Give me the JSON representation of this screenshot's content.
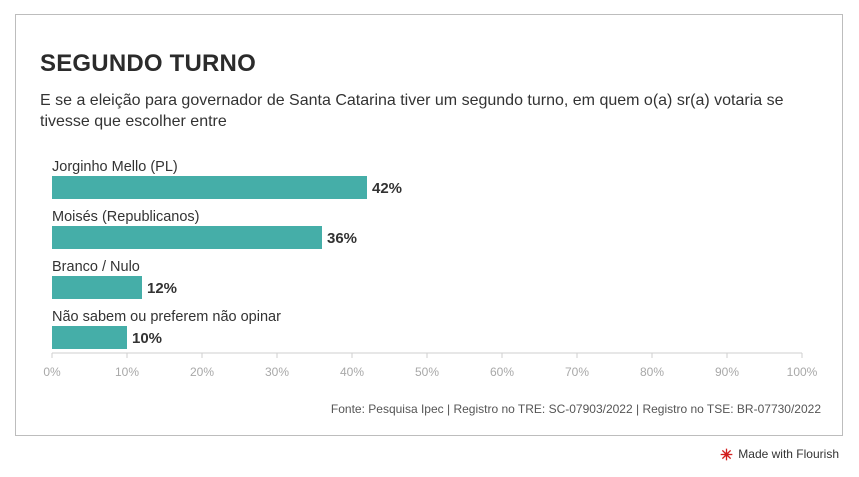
{
  "header": {
    "title": "SEGUNDO TURNO",
    "subtitle": "E se a eleição para governador de Santa Catarina tiver um segundo turno, em quem o(a) sr(a) votaria se tivesse que escolher entre"
  },
  "chart_data": {
    "type": "bar",
    "orientation": "horizontal",
    "title": "SEGUNDO TURNO",
    "categories": [
      "Jorginho Mello (PL)",
      "Moisés (Republicanos)",
      "Branco / Nulo",
      "Não sabem ou preferem não opinar"
    ],
    "values": [
      42,
      36,
      12,
      10
    ],
    "value_labels": [
      "42%",
      "36%",
      "12%",
      "10%"
    ],
    "xlim": [
      0,
      100
    ],
    "xticks": [
      "0%",
      "10%",
      "20%",
      "30%",
      "40%",
      "50%",
      "60%",
      "70%",
      "80%",
      "90%",
      "100%"
    ],
    "grid": false,
    "bar_color": "#45aea8"
  },
  "footer": {
    "source": "Fonte: Pesquisa Ipec | Registro no TRE: SC-07903/2022 | Registro no TSE: BR-07730/2022",
    "credit": "Made with Flourish",
    "credit_icon": "flourish-logo-icon"
  }
}
